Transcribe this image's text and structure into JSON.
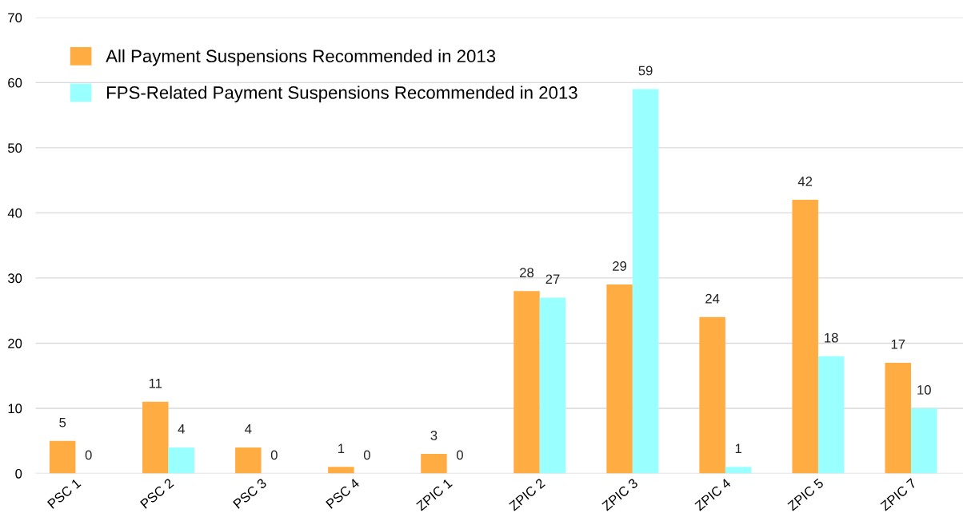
{
  "chart_data": {
    "type": "bar",
    "categories": [
      "PSC 1",
      "PSC 2",
      "PSC 3",
      "PSC 4",
      "ZPIC 1",
      "ZPIC 2",
      "ZPIC 3",
      "ZPIC 4",
      "ZPIC 5",
      "ZPIC 7"
    ],
    "series": [
      {
        "name": "All Payment Suspensions Recommended in 2013",
        "color": "#ffad42",
        "values": [
          5,
          11,
          4,
          1,
          3,
          28,
          29,
          24,
          42,
          17
        ]
      },
      {
        "name": "FPS-Related Payment Suspensions Recommended in 2013",
        "color": "#99ffff",
        "values": [
          0,
          4,
          0,
          0,
          0,
          27,
          59,
          1,
          18,
          10
        ]
      }
    ],
    "ylim": [
      0,
      70
    ],
    "yticks": [
      0,
      10,
      20,
      30,
      40,
      50,
      60,
      70
    ],
    "grid": "y",
    "legend": "top left",
    "data_labels": true
  }
}
